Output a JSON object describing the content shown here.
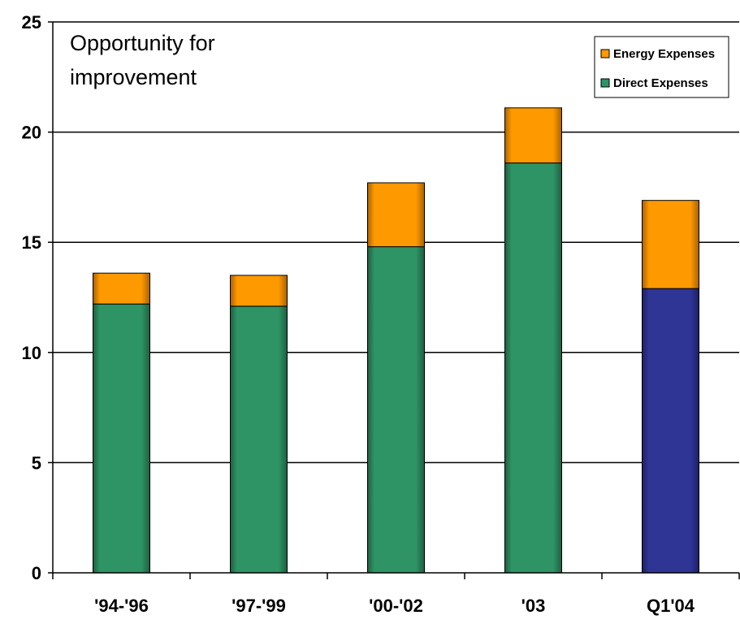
{
  "chart_data": {
    "type": "bar",
    "stacked": true,
    "categories": [
      "'94-'96",
      "'97-'99",
      "'00-'02",
      "'03",
      "Q1'04"
    ],
    "series": [
      {
        "name": "Direct Expenses",
        "values": [
          12.2,
          12.1,
          14.8,
          18.6,
          12.9
        ],
        "color": "#2e9466"
      },
      {
        "name": "Energy Expenses",
        "values": [
          1.4,
          1.4,
          2.9,
          2.5,
          4.0
        ],
        "color": "#ff9900"
      }
    ],
    "highlight": {
      "category_index": 4,
      "series": "Direct Expenses",
      "color": "#2f3595"
    },
    "ylim": [
      0,
      25
    ],
    "yticks": [
      0,
      5,
      10,
      15,
      20,
      25
    ],
    "annotation": [
      "Opportunity for",
      "improvement"
    ],
    "legend": {
      "position": "top-right",
      "entries": [
        {
          "label": "Energy Expenses",
          "color": "#ff9900"
        },
        {
          "label": "Direct Expenses",
          "color": "#2e9466"
        }
      ]
    },
    "grid": true,
    "xlabel": "",
    "ylabel": ""
  }
}
